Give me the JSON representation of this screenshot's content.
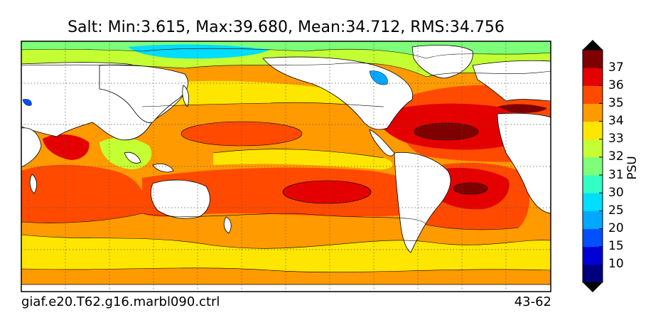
{
  "title": "Salt: Min:3.615, Max:39.680, Mean:34.712, RMS:34.756",
  "caption_left": "giaf.e20.T62.g16.marbl090.ctrl",
  "caption_right": "43-62",
  "colorbar": {
    "label": "PSU",
    "ticks": [
      "10",
      "15",
      "20",
      "25",
      "30",
      "31",
      "32",
      "33",
      "34",
      "35",
      "36",
      "37"
    ],
    "colors": [
      "#00007f",
      "#0000d4",
      "#0050ff",
      "#00a8ff",
      "#00ddff",
      "#33ffc4",
      "#7dff7a",
      "#c4ff33",
      "#ffe600",
      "#ff9a00",
      "#ff4a00",
      "#e40000",
      "#7f0000"
    ]
  },
  "map": {
    "land_color": "#ffffff",
    "grid": "dotted",
    "projection": "global cylindrical, Pacific-centred"
  }
}
